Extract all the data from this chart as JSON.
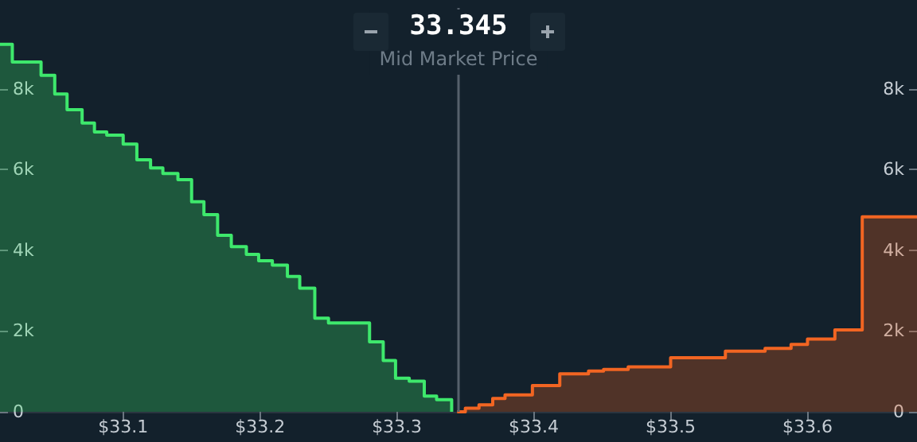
{
  "chart_data": {
    "type": "step",
    "title": "33.345",
    "subtitle": "Mid Market Price",
    "xlim": [
      33.01,
      33.68
    ],
    "xticks": [
      {
        "value": 33.1,
        "label": "$33.1"
      },
      {
        "value": 33.2,
        "label": "$33.2"
      },
      {
        "value": 33.3,
        "label": "$33.3"
      },
      {
        "value": 33.4,
        "label": "$33.4"
      },
      {
        "value": 33.5,
        "label": "$33.5"
      },
      {
        "value": 33.6,
        "label": "$33.6"
      }
    ],
    "ylim": [
      0,
      10000
    ],
    "yticks": [
      0,
      {
        "value": 2000,
        "label": "2k"
      },
      {
        "value": 4000,
        "label": "4k"
      },
      {
        "value": 6000,
        "label": "6k"
      },
      {
        "value": 8000,
        "label": "8k"
      }
    ],
    "y2lim": [
      0,
      10000
    ],
    "y2ticks": [
      0,
      {
        "value": 2000,
        "label": "2k"
      },
      {
        "value": 4000,
        "label": "4k"
      },
      {
        "value": 6000,
        "label": "6k"
      },
      {
        "value": 8000,
        "label": "8k"
      }
    ],
    "series": [
      {
        "color": "#3ee86c",
        "x": [
          33.01,
          33.019,
          33.04,
          33.05,
          33.059,
          33.07,
          33.079,
          33.088,
          33.1,
          33.11,
          33.12,
          33.129,
          33.14,
          33.15,
          33.159,
          33.169,
          33.179,
          33.19,
          33.199,
          33.209,
          33.22,
          33.229,
          33.24,
          33.25,
          33.28,
          33.29,
          33.299,
          33.309,
          33.32,
          33.329,
          33.34
        ],
        "values": [
          9100,
          8660,
          8330,
          7870,
          7480,
          7150,
          6930,
          6850,
          6630,
          6240,
          6040,
          5900,
          5750,
          5200,
          4880,
          4370,
          4090,
          3900,
          3740,
          3630,
          3350,
          3060,
          2320,
          2200,
          1730,
          1270,
          830,
          760,
          390,
          300,
          0
        ]
      },
      {
        "color": "#f26522",
        "x": [
          33.344,
          33.35,
          33.36,
          33.37,
          33.379,
          33.399,
          33.419,
          33.44,
          33.451,
          33.469,
          33.5,
          33.54,
          33.569,
          33.588,
          33.6,
          33.62,
          33.64,
          33.68
        ],
        "values": [
          0,
          90,
          170,
          330,
          420,
          650,
          940,
          1010,
          1050,
          1110,
          1340,
          1500,
          1570,
          1670,
          1800,
          2030,
          4830,
          4850
        ]
      }
    ],
    "ref_lines": [
      {
        "axis": "x",
        "value": 33.345,
        "color": "#56616c"
      }
    ],
    "grid": false
  }
}
